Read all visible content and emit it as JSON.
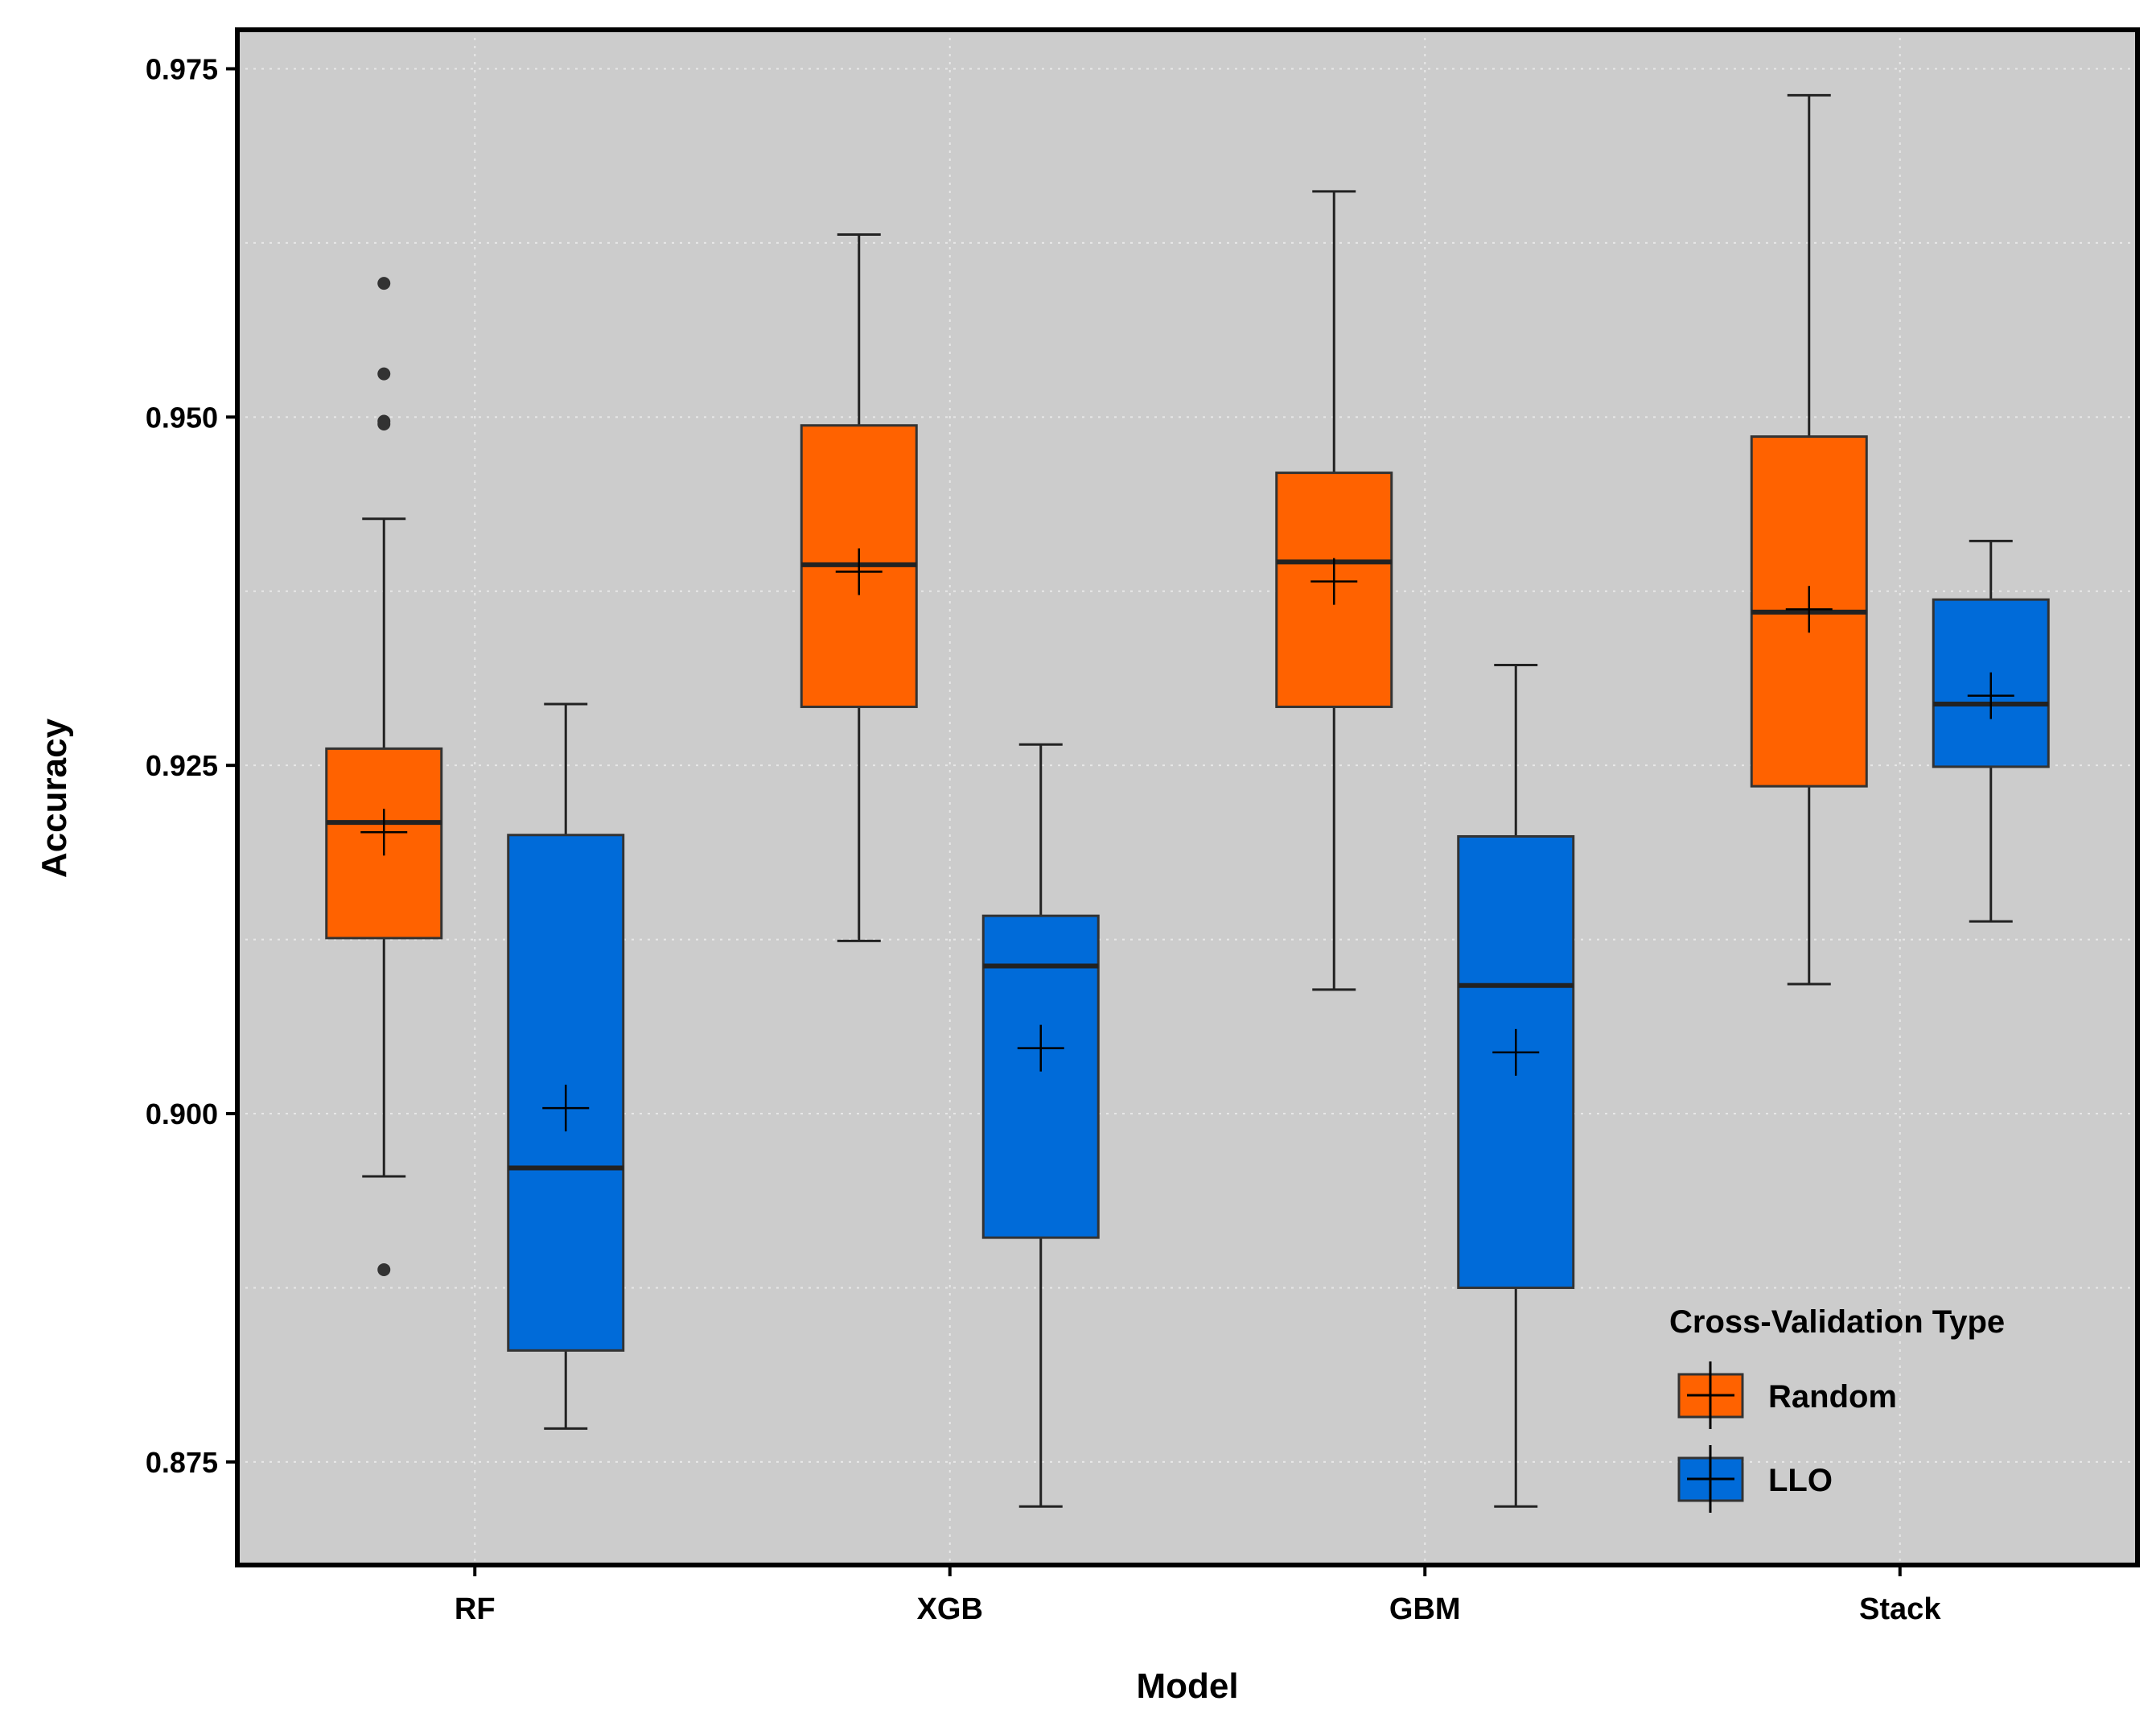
{
  "chart_data": {
    "type": "boxplot",
    "title": "",
    "xlabel": "Model",
    "ylabel": "Accuracy",
    "ylim": [
      0.8676,
      0.9778
    ],
    "yticks": [
      0.875,
      0.9,
      0.925,
      0.95,
      0.975
    ],
    "ytick_labels": [
      "0.875",
      "0.900",
      "0.925",
      "0.950",
      "0.975"
    ],
    "grid": true,
    "categories": [
      "RF",
      "XGB",
      "GBM",
      "Stack"
    ],
    "legend": {
      "title": "Cross-Validation Type",
      "placement": "bottom-right",
      "entries": [
        "Random",
        "LLO"
      ]
    },
    "series": [
      {
        "name": "Random",
        "color": "#ff6200",
        "boxes": [
          {
            "category": "RF",
            "whisker_low": 0.8955,
            "q1": 0.9126,
            "median": 0.9209,
            "q3": 0.9262,
            "whisker_high": 0.9427,
            "mean": 0.9202,
            "outliers": [
              0.8888,
              0.9495,
              0.9497,
              0.9531,
              0.9596
            ]
          },
          {
            "category": "XGB",
            "whisker_low": 0.9124,
            "q1": 0.9292,
            "median": 0.9394,
            "q3": 0.9494,
            "whisker_high": 0.9631,
            "mean": 0.9389,
            "outliers": []
          },
          {
            "category": "GBM",
            "whisker_low": 0.9089,
            "q1": 0.9292,
            "median": 0.9396,
            "q3": 0.946,
            "whisker_high": 0.9662,
            "mean": 0.9382,
            "outliers": []
          },
          {
            "category": "Stack",
            "whisker_low": 0.9093,
            "q1": 0.9235,
            "median": 0.936,
            "q3": 0.9486,
            "whisker_high": 0.9731,
            "mean": 0.9362,
            "outliers": []
          }
        ]
      },
      {
        "name": "LLO",
        "color": "#006bd9",
        "boxes": [
          {
            "category": "RF",
            "whisker_low": 0.8774,
            "q1": 0.883,
            "median": 0.8961,
            "q3": 0.92,
            "whisker_high": 0.9294,
            "mean": 0.9004,
            "outliers": []
          },
          {
            "category": "XGB",
            "whisker_low": 0.8718,
            "q1": 0.8911,
            "median": 0.9106,
            "q3": 0.9142,
            "whisker_high": 0.9265,
            "mean": 0.9047,
            "outliers": []
          },
          {
            "category": "GBM",
            "whisker_low": 0.8718,
            "q1": 0.8875,
            "median": 0.9092,
            "q3": 0.9199,
            "whisker_high": 0.9322,
            "mean": 0.9044,
            "outliers": []
          },
          {
            "category": "Stack",
            "whisker_low": 0.9138,
            "q1": 0.9249,
            "median": 0.9294,
            "q3": 0.9369,
            "whisker_high": 0.9411,
            "mean": 0.93,
            "outliers": []
          }
        ]
      }
    ]
  }
}
